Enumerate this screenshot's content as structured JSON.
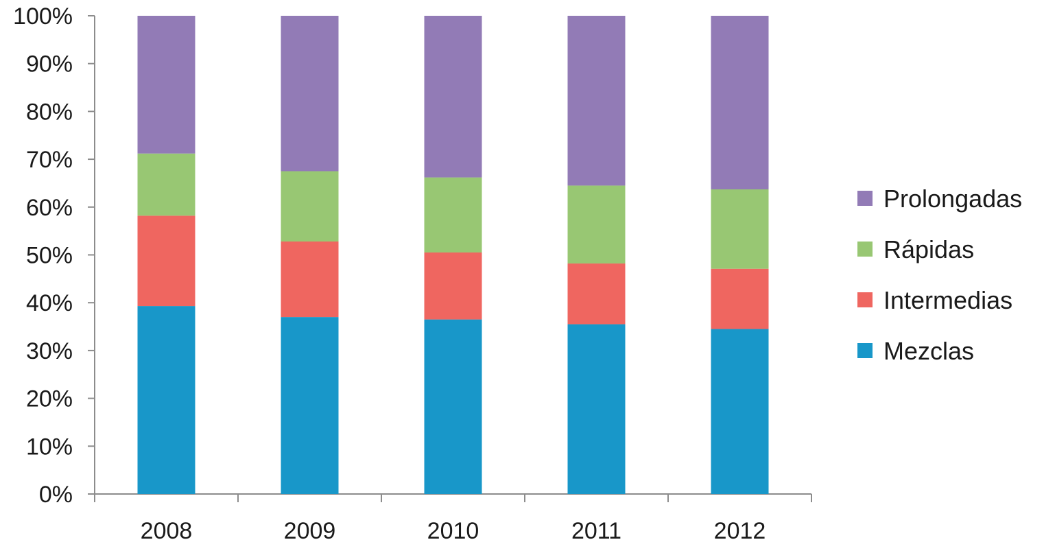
{
  "chart_data": {
    "type": "bar",
    "stacked": true,
    "normalized": true,
    "categories": [
      "2008",
      "2009",
      "2010",
      "2011",
      "2012"
    ],
    "series": [
      {
        "name": "Mezclas",
        "color": "#1897c9",
        "values": [
          39.3,
          37.0,
          36.5,
          35.5,
          34.5
        ]
      },
      {
        "name": "Intermedias",
        "color": "#ef6660",
        "values": [
          18.9,
          15.8,
          14.0,
          12.7,
          12.6
        ]
      },
      {
        "name": "Rápidas",
        "color": "#98c773",
        "values": [
          13.0,
          14.7,
          15.7,
          16.3,
          16.6
        ]
      },
      {
        "name": "Prolongadas",
        "color": "#927bb6",
        "values": [
          28.8,
          32.5,
          33.8,
          35.5,
          36.3
        ]
      }
    ],
    "yticks": [
      "0%",
      "10%",
      "20%",
      "30%",
      "40%",
      "50%",
      "60%",
      "70%",
      "80%",
      "90%",
      "100%"
    ],
    "ylim": [
      0,
      100
    ],
    "legend_position": "right",
    "legend_order": [
      "Prolongadas",
      "Rápidas",
      "Intermedias",
      "Mezclas"
    ],
    "grid": false,
    "title": "",
    "xlabel": "",
    "ylabel": ""
  }
}
